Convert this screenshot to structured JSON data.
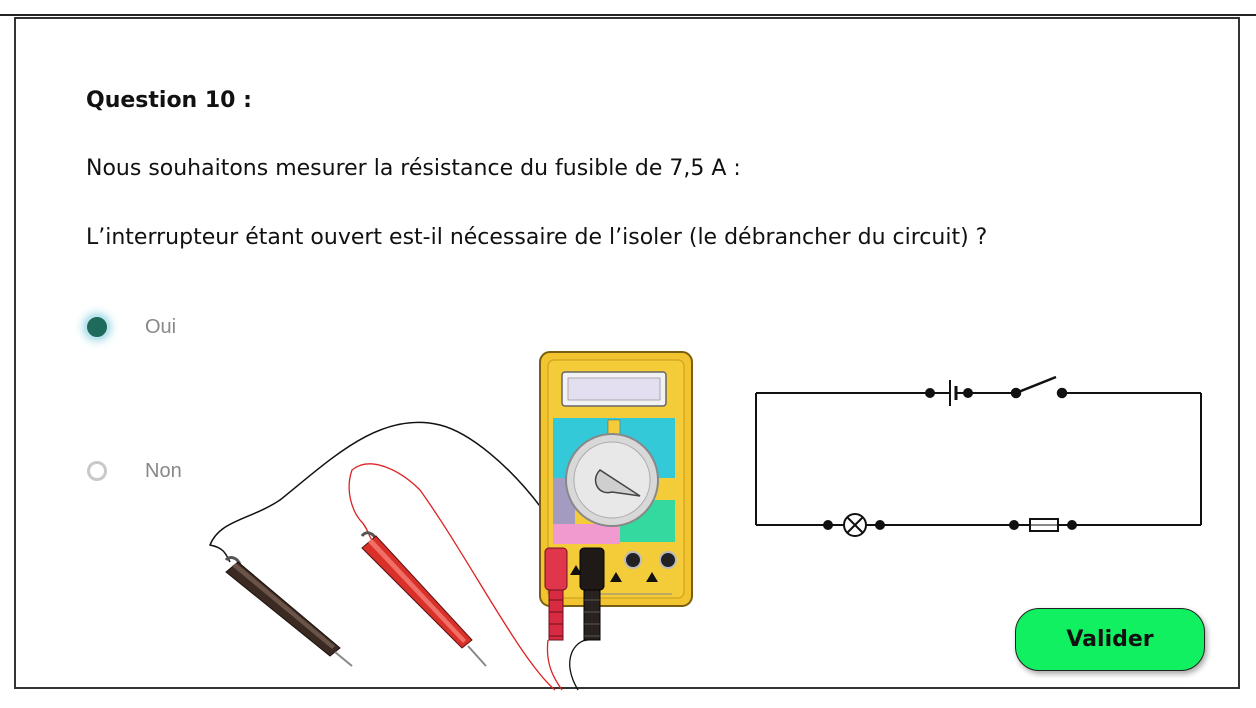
{
  "question": {
    "title": "Question 10 :",
    "line1": "Nous souhaitons mesurer la résistance du fusible de 7,5 A :",
    "line2": "L’interrupteur étant ouvert est-il nécessaire de l’isoler (le débrancher du circuit) ?"
  },
  "options": [
    {
      "label": "Oui",
      "selected": true
    },
    {
      "label": "Non",
      "selected": false
    }
  ],
  "validate_label": "Valider",
  "colors": {
    "validate_bg": "#10f060",
    "radio_selected": "#1e6b5c",
    "multimeter_body": "#f2c430",
    "probe_red": "#d9302a",
    "probe_black": "#3a2a22"
  }
}
